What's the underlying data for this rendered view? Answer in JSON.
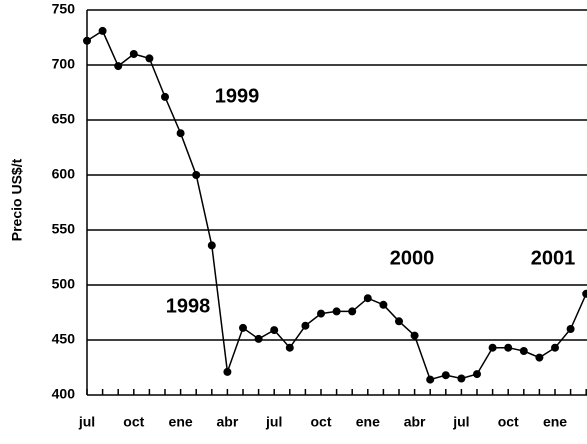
{
  "chart_data": {
    "type": "line",
    "y_label": "Precio US$/t",
    "categories": [
      "jul",
      null,
      null,
      "oct",
      null,
      null,
      "ene",
      null,
      null,
      "abr",
      null,
      null,
      "jul",
      null,
      null,
      "oct",
      null,
      null,
      "ene",
      null,
      null,
      "abr",
      null,
      null,
      "jul",
      null,
      null,
      "oct",
      null,
      null,
      "ene",
      null,
      null
    ],
    "values": [
      722,
      731,
      699,
      710,
      706,
      671,
      638,
      600,
      536,
      421,
      461,
      451,
      459,
      443,
      463,
      474,
      476,
      476,
      488,
      482,
      467,
      454,
      414,
      418,
      415,
      419,
      443,
      443,
      440,
      434,
      443,
      460,
      492
    ],
    "color": "#000000",
    "ylim": [
      400,
      750
    ],
    "yticks": [
      400,
      450,
      500,
      550,
      600,
      650,
      700,
      750
    ],
    "grid": true,
    "annotations": [
      "1999",
      "1998",
      "2000",
      "2001"
    ]
  }
}
